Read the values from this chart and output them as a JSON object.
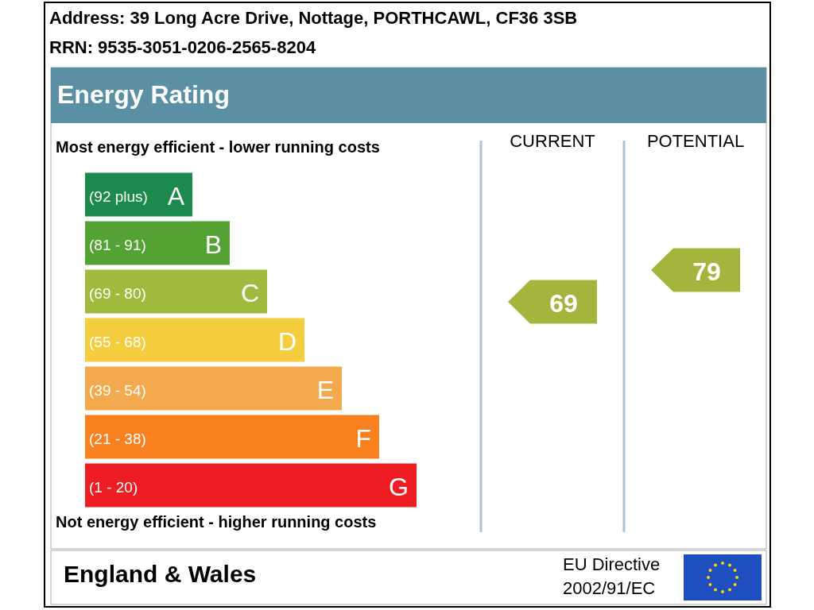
{
  "chart_data": {
    "type": "other",
    "title": "Energy Rating",
    "categories": [
      "CURRENT",
      "POTENTIAL"
    ],
    "values": [
      69,
      79
    ],
    "colors": [
      "#a4b43c",
      "#a4b43c"
    ],
    "data_labels": true,
    "annotations": [
      "Address: 39 Long Acre Drive, Nottage, PORTHCAWL, CF36 3SB",
      "RRN: 9535-3051-0206-2565-8204",
      "Most energy efficient - lower running costs",
      "Not energy efficient - higher running costs",
      "England & Wales",
      "EU Directive 2002/91/EC",
      "(92 plus) A",
      "(81 - 91) B",
      "(69 - 80) C",
      "(55 - 68) D",
      "(39 - 54) E",
      "(21 - 38) F",
      "(1 - 20) G"
    ]
  }
}
